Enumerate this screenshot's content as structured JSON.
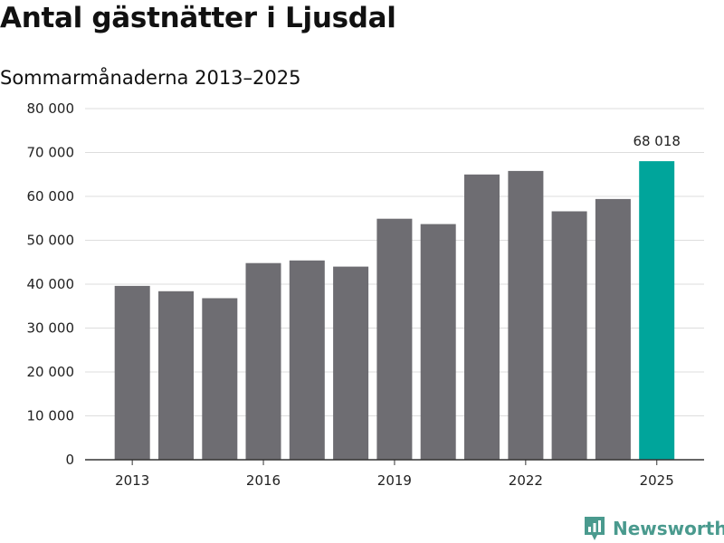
{
  "header": {
    "title": "Antal gästnätter i Ljusdal",
    "subtitle": "Sommarmånaderna 2013–2025"
  },
  "chart_data": {
    "type": "bar",
    "categories": [
      "2013",
      "2014",
      "2015",
      "2016",
      "2017",
      "2018",
      "2019",
      "2020",
      "2021",
      "2022",
      "2023",
      "2024",
      "2025"
    ],
    "values": [
      39600,
      38400,
      36800,
      44800,
      45400,
      44000,
      54900,
      53700,
      65000,
      65800,
      56600,
      59400,
      68018
    ],
    "x_tick_labels": [
      "2013",
      "2016",
      "2019",
      "2022",
      "2025"
    ],
    "y_tick_labels": [
      "0",
      "10 000",
      "20 000",
      "30 000",
      "40 000",
      "50 000",
      "60 000",
      "70 000",
      "80 000"
    ],
    "ylim": [
      0,
      80000
    ],
    "highlight": {
      "category": "2025",
      "label": "68 018"
    },
    "grid": true,
    "colors": {
      "bar": "#6e6d72",
      "highlight": "#00a59b",
      "grid": "#dddddd",
      "axis": "#333333"
    }
  },
  "branding": {
    "name": "Newsworthy",
    "icon": "newsworthy-logo-icon",
    "color": "#4a9a8e"
  }
}
